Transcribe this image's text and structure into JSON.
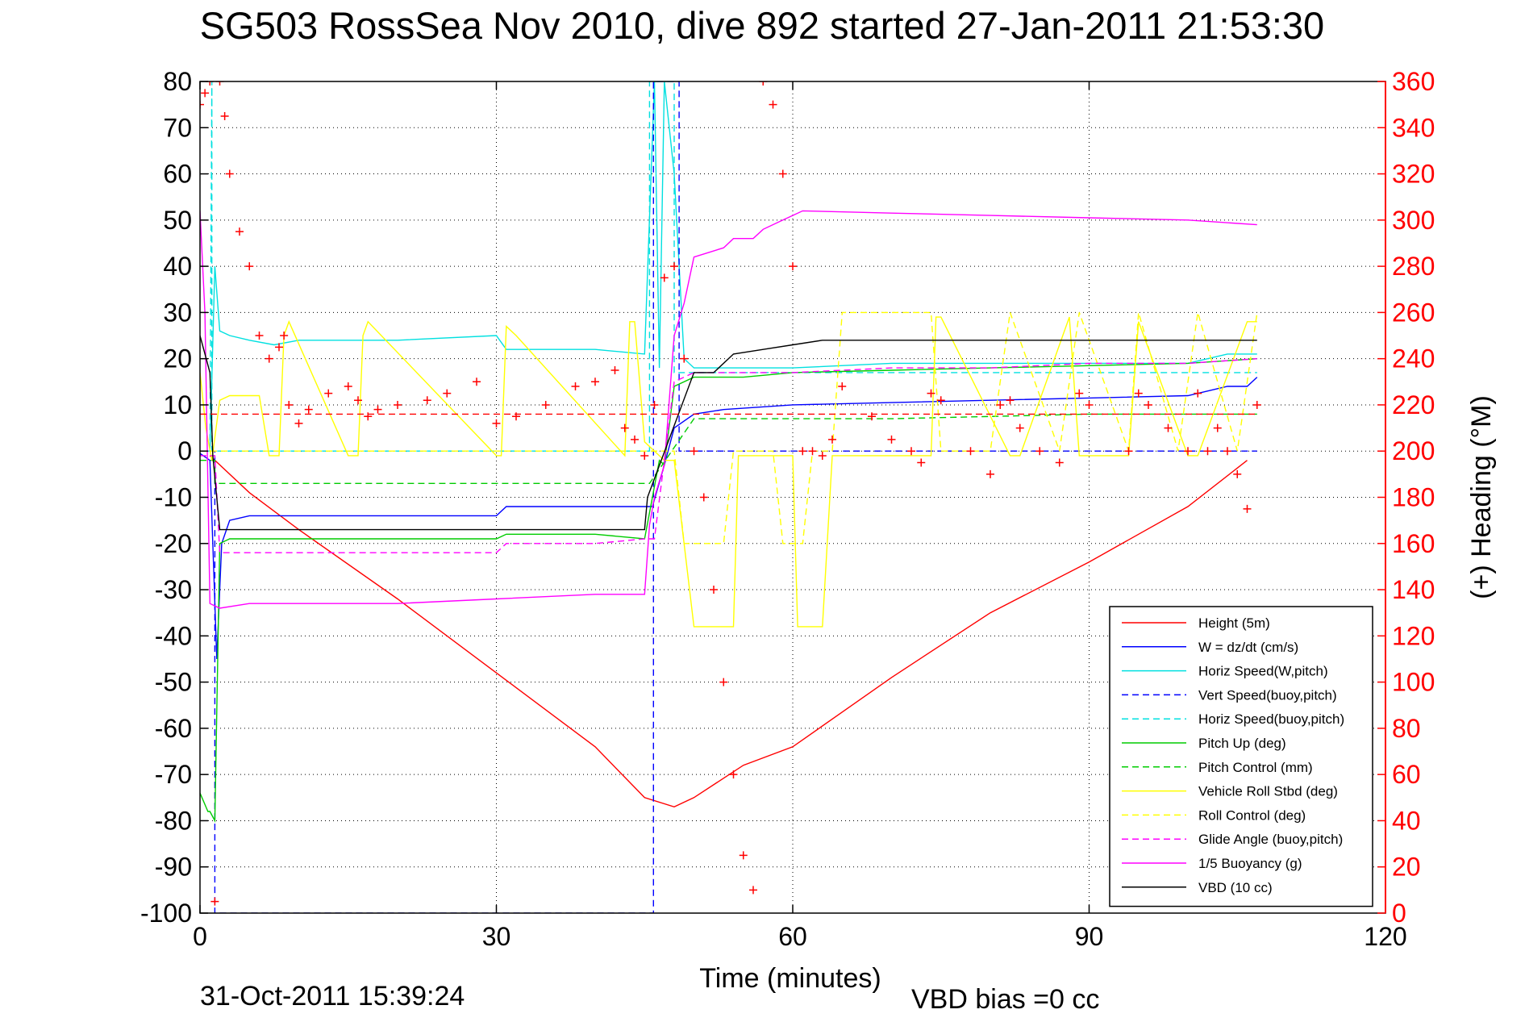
{
  "title": "SG503 RossSea Nov 2010, dive 892 started 27-Jan-2011 21:53:30",
  "footer": {
    "timestamp": "31-Oct-2011 15:39:24",
    "vbd_bias": "VBD bias =0 cc"
  },
  "chart_data": {
    "type": "line",
    "title": "SG503 RossSea Nov 2010, dive 892 started 27-Jan-2011 21:53:30",
    "xlabel": "Time (minutes)",
    "ylabel": "",
    "ylabel_right": "(+) Heading (°M)",
    "xlim": [
      0,
      120
    ],
    "ylim": [
      -100,
      80
    ],
    "ylim_right": [
      0,
      360
    ],
    "x_ticks": [
      "0",
      "30",
      "60",
      "90",
      "120"
    ],
    "y_ticks": [
      "80",
      "70",
      "60",
      "50",
      "40",
      "30",
      "20",
      "10",
      "0",
      "-10",
      "-20",
      "-30",
      "-40",
      "-50",
      "-60",
      "-70",
      "-80",
      "-90",
      "-100"
    ],
    "y_ticks_right": [
      "360",
      "340",
      "320",
      "300",
      "280",
      "260",
      "240",
      "220",
      "200",
      "180",
      "160",
      "140",
      "120",
      "100",
      "80",
      "60",
      "40",
      "20",
      "0"
    ],
    "grid": true,
    "legend_position": "bottom-right",
    "colors": {
      "right_axis": "#ff0000",
      "axis": "#000000",
      "grid": "#000000"
    },
    "series": [
      {
        "name": "Height (5m)",
        "color": "#ff0000",
        "dash": "solid",
        "x": [
          1,
          5,
          10,
          20,
          30,
          40,
          45,
          48,
          50,
          55,
          60,
          70,
          80,
          90,
          100,
          106
        ],
        "y": [
          -1,
          -9,
          -17,
          -32,
          -48,
          -64,
          -75,
          -77,
          -75,
          -68,
          -64,
          -49,
          -35,
          -24,
          -12,
          -2
        ]
      },
      {
        "name": "W = dz/dt (cm/s)",
        "color": "#0000ff",
        "dash": "solid",
        "x": [
          0,
          1,
          1.7,
          2.2,
          3,
          5,
          10,
          20,
          30,
          31,
          40,
          45,
          45.8,
          47,
          48,
          50,
          53,
          60,
          70,
          80,
          90,
          100,
          104,
          106,
          107
        ],
        "y": [
          -0.5,
          -2,
          -45,
          -20,
          -15,
          -14,
          -14,
          -14,
          -14,
          -12,
          -12,
          -12,
          -12,
          -3,
          5,
          8,
          9,
          10,
          10.5,
          11,
          11.5,
          12,
          14,
          14,
          16
        ]
      },
      {
        "name": "Horiz Speed(W,pitch)",
        "color": "#00e0e0",
        "dash": "solid",
        "x": [
          0,
          1,
          1.5,
          2,
          3,
          5,
          7.5,
          10,
          12,
          20,
          30,
          31,
          40,
          45,
          46,
          46.5,
          47,
          48,
          49,
          50,
          53,
          60,
          70,
          80,
          90,
          100,
          104,
          107
        ],
        "y": [
          0,
          0,
          40,
          26,
          25,
          24,
          23,
          24,
          24,
          24,
          25,
          22,
          22,
          21,
          80,
          18,
          80,
          60,
          20,
          18,
          18,
          18,
          19,
          19,
          19,
          19,
          21,
          21
        ]
      },
      {
        "name": "Vert Speed(buoy,pitch)",
        "color": "#0000ff",
        "dash": "dash",
        "x": [
          1,
          1.5,
          1.5,
          45.9,
          45.9,
          48.5,
          48.5,
          107
        ],
        "y": [
          0,
          0,
          -100,
          -100,
          80,
          80,
          0,
          0
        ]
      },
      {
        "name": "Horiz Speed(buoy,pitch)",
        "color": "#00e0e0",
        "dash": "dash",
        "x": [
          1,
          1.2,
          1.2,
          45.5,
          45.5,
          48,
          48,
          107
        ],
        "y": [
          0,
          80,
          0,
          0,
          80,
          80,
          17,
          17
        ]
      },
      {
        "name": "Pitch Up (deg)",
        "color": "#00cc00",
        "dash": "solid",
        "x": [
          0,
          0.8,
          1,
          1.5,
          2,
          3,
          5,
          10,
          20,
          30,
          31,
          40,
          45,
          46.5,
          47,
          48,
          50,
          55,
          60,
          70,
          80,
          90,
          100,
          107
        ],
        "y": [
          -74,
          -78,
          -78,
          -80,
          -20,
          -19,
          -19,
          -19,
          -19,
          -19,
          -18,
          -18,
          -19,
          -2,
          -3,
          14,
          16,
          16,
          17,
          17.5,
          18,
          18.5,
          19,
          20
        ]
      },
      {
        "name": "Pitch Control (mm)",
        "color": "#00cc00",
        "dash": "dash",
        "x": [
          0,
          1.5,
          1.5,
          30,
          31,
          45,
          45.5,
          50,
          60,
          70,
          80,
          90,
          100,
          107
        ],
        "y": [
          -2,
          -2,
          -7,
          -7,
          -7,
          -7,
          -7,
          7,
          7,
          7,
          7.5,
          8,
          8,
          8
        ]
      },
      {
        "name": "Vehicle Roll Stbd (deg)",
        "color": "#ffff00",
        "dash": "solid",
        "x": [
          0,
          0.6,
          1.2,
          2,
          3,
          6,
          7,
          8,
          8.5,
          9,
          15,
          16,
          16.5,
          17,
          30,
          30.5,
          31,
          32,
          43,
          43.5,
          44,
          45,
          46,
          47,
          48,
          50,
          54,
          54.5,
          60,
          60.5,
          63,
          64,
          65,
          74,
          74.5,
          75,
          82,
          83,
          88,
          89,
          94,
          95,
          100,
          101,
          106,
          107
        ],
        "y": [
          17,
          5,
          -2,
          11,
          12,
          12,
          -1,
          -1,
          25,
          28,
          -1,
          -1,
          25,
          28,
          -1,
          -1,
          27,
          25,
          -1,
          28,
          28,
          2,
          0,
          -2,
          -2,
          -38,
          -38,
          -1,
          -1,
          -38,
          -38,
          -1,
          -1,
          -1,
          29,
          29,
          -1,
          -1,
          29,
          -1,
          -1,
          28,
          -1,
          -1,
          28,
          28
        ]
      },
      {
        "name": "Roll Control (deg)",
        "color": "#ffff00",
        "dash": "dash",
        "x": [
          0,
          2,
          48,
          49,
          53,
          54,
          58,
          59,
          61,
          62,
          64,
          65,
          74,
          75,
          80,
          82,
          87,
          89,
          94,
          95,
          99,
          101,
          105,
          107
        ],
        "y": [
          0,
          0,
          0,
          -20,
          -20,
          0,
          0,
          -20,
          -20,
          0,
          0,
          30,
          30,
          0,
          0,
          30,
          0,
          30,
          0,
          30,
          0,
          30,
          0,
          30
        ]
      },
      {
        "name": "Glide Angle (buoy,pitch)",
        "color": "#ff00ff",
        "dash": "dash",
        "x": [
          0,
          1.5,
          2,
          3,
          10,
          20,
          30,
          31,
          40,
          45,
          46,
          48,
          50,
          60,
          70,
          80,
          90,
          100,
          107
        ],
        "y": [
          -1,
          -1,
          -22,
          -22,
          -22,
          -22,
          -22,
          -20,
          -20,
          -19,
          -19,
          15,
          17,
          17,
          18,
          18,
          19,
          19,
          20
        ]
      },
      {
        "name": "1/5 Buoyancy (g)",
        "color": "#ff00ff",
        "dash": "solid",
        "x": [
          0,
          0.5,
          1,
          2,
          5,
          10,
          20,
          30,
          40,
          45,
          45.5,
          46,
          47,
          48,
          49,
          50,
          53,
          54,
          55,
          56,
          57,
          59,
          60,
          61,
          70,
          80,
          90,
          100,
          107
        ],
        "y": [
          52,
          30,
          -33,
          -34,
          -33,
          -33,
          -33,
          -32,
          -31,
          -31,
          -16,
          -10,
          -3,
          25,
          32,
          42,
          44,
          46,
          46,
          46,
          48,
          50,
          51,
          52,
          51.5,
          51,
          50.5,
          50,
          49
        ]
      },
      {
        "name": "VBD (10 cc)",
        "color": "#000000",
        "dash": "solid",
        "x": [
          0,
          1,
          1.3,
          2,
          10,
          20,
          30,
          40,
          45,
          45.3,
          50,
          52,
          54,
          57,
          60,
          63,
          70,
          80,
          90,
          100,
          107
        ],
        "y": [
          25,
          17,
          -1,
          -17,
          -17,
          -17,
          -17,
          -17,
          -17,
          -10,
          17,
          17,
          21,
          22,
          23,
          24,
          24,
          24,
          24,
          24,
          24
        ]
      },
      {
        "name": "",
        "color": "#ff0000",
        "dash": "dash",
        "x": [
          0,
          107
        ],
        "y": [
          8,
          8
        ]
      },
      {
        "name": "(+) Heading (°M)",
        "color": "#ff0000",
        "dash": "plus",
        "axis": "right",
        "x": [
          0,
          0.5,
          1,
          1.5,
          2,
          2.5,
          3,
          4,
          5,
          6,
          7,
          8,
          8.5,
          9,
          10,
          11,
          13,
          15,
          16,
          17,
          18,
          20,
          23,
          25,
          28,
          30,
          32,
          35,
          38,
          40,
          42,
          43,
          44,
          45,
          46,
          47,
          48,
          49,
          50,
          51,
          52,
          53,
          54,
          55,
          56,
          57,
          58,
          59,
          60,
          61,
          62,
          63,
          64,
          65,
          68,
          70,
          72,
          73,
          74,
          75,
          78,
          80,
          81,
          82,
          83,
          85,
          87,
          89,
          90,
          94,
          95,
          96,
          98,
          100,
          101,
          102,
          103,
          104,
          105,
          106,
          107
        ],
        "y": [
          350,
          355,
          360,
          5,
          360,
          345,
          320,
          295,
          280,
          250,
          240,
          245,
          250,
          220,
          212,
          218,
          225,
          228,
          222,
          215,
          218,
          220,
          222,
          225,
          230,
          212,
          215,
          220,
          228,
          230,
          235,
          210,
          205,
          198,
          220,
          275,
          280,
          240,
          200,
          180,
          140,
          100,
          60,
          25,
          10,
          360,
          350,
          320,
          280,
          200,
          200,
          198,
          205,
          228,
          215,
          205,
          200,
          195,
          225,
          222,
          200,
          190,
          220,
          222,
          210,
          200,
          195,
          225,
          220,
          200,
          225,
          220,
          210,
          200,
          225,
          200,
          210,
          200,
          190,
          175,
          220
        ]
      }
    ]
  }
}
